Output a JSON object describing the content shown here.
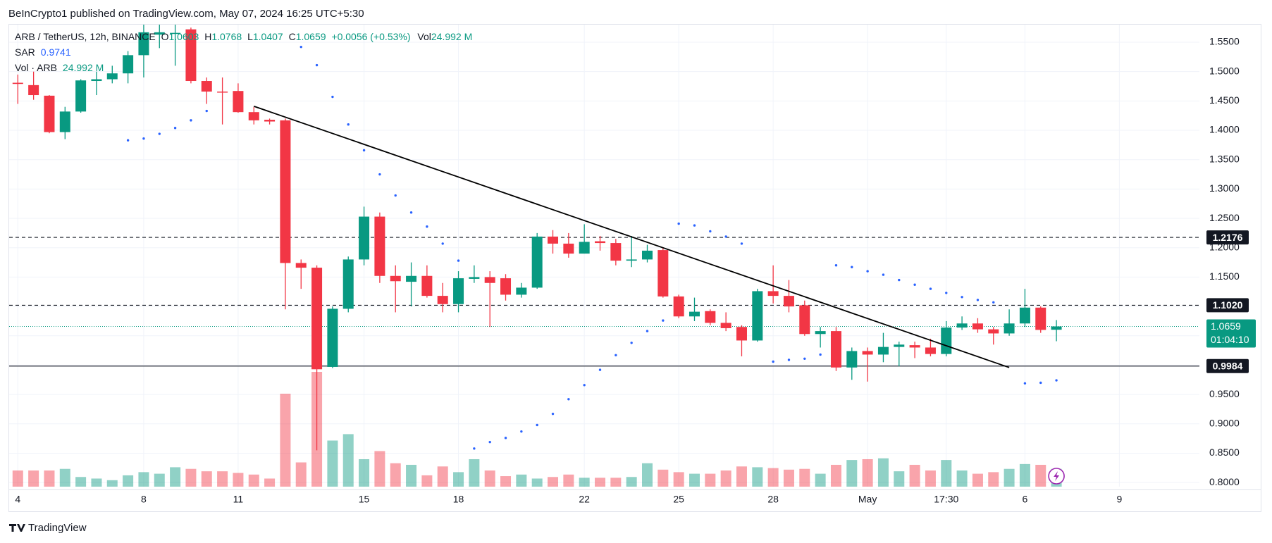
{
  "header": "BeInCrypto1 published on TradingView.com, May 07, 2024 16:25 UTC+5:30",
  "legend": {
    "symbol": "ARB / TetherUS, 12h, BINANCE",
    "ohlc": [
      {
        "key": "O",
        "text": "1.0603"
      },
      {
        "key": "H",
        "text": "1.0768"
      },
      {
        "key": "L",
        "text": "1.0407"
      },
      {
        "key": "C",
        "text": "1.0659"
      }
    ],
    "change": "+0.0056 (+0.53%)",
    "volume_key": "Vol",
    "volume_text": "24.992 M"
  },
  "indicators": [
    {
      "name": "SAR",
      "text": "0.9741"
    },
    {
      "name": "Vol · ARB",
      "text": "24.992 M"
    }
  ],
  "footer": "TradingView",
  "chart_data": {
    "type": "candlestick",
    "categories": [
      "2024-04-04 05:30",
      "2024-04-04 17:30",
      "2024-04-05 05:30",
      "2024-04-05 17:30",
      "2024-04-06 05:30",
      "2024-04-06 17:30",
      "2024-04-07 05:30",
      "2024-04-07 17:30",
      "2024-04-08 05:30",
      "2024-04-08 17:30",
      "2024-04-09 05:30",
      "2024-04-09 17:30",
      "2024-04-10 05:30",
      "2024-04-10 17:30",
      "2024-04-11 05:30",
      "2024-04-11 17:30",
      "2024-04-12 05:30",
      "2024-04-12 17:30",
      "2024-04-13 05:30",
      "2024-04-13 17:30",
      "2024-04-14 05:30",
      "2024-04-14 17:30",
      "2024-04-15 05:30",
      "2024-04-15 17:30",
      "2024-04-16 05:30",
      "2024-04-16 17:30",
      "2024-04-17 05:30",
      "2024-04-17 17:30",
      "2024-04-18 05:30",
      "2024-04-18 17:30",
      "2024-04-19 05:30",
      "2024-04-19 17:30",
      "2024-04-20 05:30",
      "2024-04-20 17:30",
      "2024-04-21 05:30",
      "2024-04-21 17:30",
      "2024-04-22 05:30",
      "2024-04-22 17:30",
      "2024-04-23 05:30",
      "2024-04-23 17:30",
      "2024-04-24 05:30",
      "2024-04-24 17:30",
      "2024-04-25 05:30",
      "2024-04-25 17:30",
      "2024-04-26 05:30",
      "2024-04-26 17:30",
      "2024-04-27 05:30",
      "2024-04-27 17:30",
      "2024-04-28 05:30",
      "2024-04-28 17:30",
      "2024-04-29 05:30",
      "2024-04-29 17:30",
      "2024-04-30 05:30",
      "2024-04-30 17:30",
      "2024-05-01 05:30",
      "2024-05-01 17:30",
      "2024-05-02 05:30",
      "2024-05-02 17:30",
      "2024-05-03 05:30",
      "2024-05-03 17:30",
      "2024-05-04 05:30",
      "2024-05-04 17:30",
      "2024-05-05 05:30",
      "2024-05-05 17:30",
      "2024-05-06 05:30",
      "2024-05-06 17:30",
      "2024-05-07 05:30"
    ],
    "open": [
      1.481,
      1.477,
      1.459,
      1.397,
      1.432,
      1.484,
      1.487,
      1.497,
      1.528,
      1.563,
      1.566,
      1.572,
      1.484,
      1.466,
      1.467,
      1.431,
      1.418,
      1.417,
      1.174,
      1.166,
      0.997,
      1.096,
      1.18,
      1.253,
      1.152,
      1.142,
      1.152,
      1.118,
      1.104,
      1.147,
      1.15,
      1.148,
      1.12,
      1.132,
      1.219,
      1.207,
      1.19,
      1.211,
      1.208,
      1.178,
      1.18,
      1.196,
      1.117,
      1.083,
      1.092,
      1.072,
      1.065,
      1.042,
      1.126,
      1.118,
      1.102,
      1.053,
      1.058,
      0.996,
      1.024,
      1.018,
      1.031,
      1.034,
      1.03,
      1.019,
      1.064,
      1.071,
      1.061,
      1.054,
      1.071,
      1.098,
      1.0603
    ],
    "high": [
      1.495,
      1.5,
      1.46,
      1.44,
      1.487,
      1.5,
      1.51,
      1.535,
      1.58,
      1.58,
      1.58,
      1.575,
      1.49,
      1.49,
      1.48,
      1.44,
      1.42,
      1.42,
      1.18,
      1.17,
      1.1,
      1.185,
      1.27,
      1.26,
      1.17,
      1.175,
      1.17,
      1.14,
      1.16,
      1.17,
      1.16,
      1.155,
      1.14,
      1.225,
      1.23,
      1.225,
      1.24,
      1.22,
      1.215,
      1.22,
      1.205,
      1.2,
      1.12,
      1.115,
      1.095,
      1.09,
      1.068,
      1.13,
      1.17,
      1.145,
      1.11,
      1.065,
      1.065,
      1.03,
      1.03,
      1.055,
      1.04,
      1.04,
      1.045,
      1.075,
      1.083,
      1.08,
      1.065,
      1.095,
      1.13,
      1.1,
      1.0768
    ],
    "low": [
      1.445,
      1.452,
      1.395,
      1.385,
      1.43,
      1.46,
      1.48,
      1.48,
      1.49,
      1.54,
      1.51,
      1.48,
      1.445,
      1.41,
      1.43,
      1.41,
      1.41,
      1.095,
      1.13,
      0.855,
      0.995,
      1.09,
      1.17,
      1.14,
      1.09,
      1.1,
      1.115,
      1.09,
      1.09,
      1.14,
      1.065,
      1.11,
      1.115,
      1.13,
      1.19,
      1.183,
      1.19,
      1.195,
      1.17,
      1.167,
      1.175,
      1.115,
      1.08,
      1.075,
      1.068,
      1.058,
      1.015,
      1.04,
      1.105,
      1.09,
      1.05,
      1.03,
      0.99,
      0.975,
      0.972,
      1.005,
      0.998,
      1.012,
      1.015,
      1.015,
      1.06,
      1.055,
      1.035,
      1.05,
      1.065,
      1.055,
      1.0407
    ],
    "close": [
      1.479,
      1.46,
      1.397,
      1.432,
      1.485,
      1.487,
      1.497,
      1.528,
      1.567,
      1.567,
      1.566,
      1.484,
      1.466,
      1.465,
      1.431,
      1.417,
      1.415,
      1.174,
      1.166,
      0.993,
      1.096,
      1.18,
      1.253,
      1.152,
      1.143,
      1.152,
      1.118,
      1.104,
      1.148,
      1.15,
      1.14,
      1.12,
      1.132,
      1.219,
      1.207,
      1.19,
      1.21,
      1.208,
      1.178,
      1.18,
      1.195,
      1.117,
      1.083,
      1.091,
      1.072,
      1.063,
      1.042,
      1.126,
      1.118,
      1.1,
      1.053,
      1.058,
      0.996,
      1.024,
      1.018,
      1.031,
      1.035,
      1.03,
      1.019,
      1.064,
      1.071,
      1.061,
      1.054,
      1.071,
      1.098,
      1.06,
      1.0659
    ],
    "volume": [
      22.7,
      22.7,
      22.7,
      25.0,
      13.6,
      11.4,
      9.1,
      15.9,
      20.4,
      18.2,
      27.3,
      25.0,
      21.6,
      21.6,
      19.3,
      17.0,
      11.4,
      130.6,
      34.1,
      161.3,
      64.8,
      73.8,
      38.6,
      50.0,
      32.9,
      30.7,
      15.9,
      28.4,
      20.4,
      38.6,
      22.7,
      14.8,
      17.0,
      11.4,
      13.6,
      17.0,
      12.5,
      12.5,
      12.5,
      13.6,
      32.9,
      23.9,
      20.4,
      18.2,
      18.2,
      22.7,
      28.4,
      27.3,
      26.1,
      23.9,
      25.0,
      18.2,
      30.7,
      37.5,
      38.6,
      39.8,
      21.6,
      30.7,
      22.7,
      37.5,
      22.7,
      18.2,
      20.4,
      25.0,
      31.8,
      30.7,
      24.992
    ],
    "sar": [
      null,
      null,
      null,
      null,
      null,
      null,
      null,
      1.383,
      1.386,
      1.394,
      1.404,
      1.417,
      1.433,
      null,
      null,
      null,
      null,
      null,
      1.542,
      1.511,
      1.457,
      1.41,
      1.366,
      1.325,
      1.289,
      1.26,
      1.236,
      1.207,
      1.178,
      0.858,
      0.869,
      0.876,
      0.887,
      0.898,
      0.917,
      0.942,
      0.966,
      0.992,
      1.017,
      1.038,
      1.058,
      1.076,
      1.241,
      1.238,
      1.228,
      1.219,
      1.207,
      null,
      1.006,
      1.009,
      1.011,
      1.018,
      1.17,
      1.167,
      1.16,
      1.154,
      1.145,
      1.137,
      1.13,
      1.123,
      1.116,
      1.111,
      1.107,
      null,
      0.969,
      0.97,
      0.9741
    ],
    "up_color": "#089981",
    "down_color": "#f23645",
    "sar_color": "#2962ff",
    "ylim": [
      0.793,
      1.58
    ],
    "yticks": [
      {
        "value": 0.8,
        "label": "0.8000"
      },
      {
        "value": 0.85,
        "label": "0.8500"
      },
      {
        "value": 0.9,
        "label": "0.9000"
      },
      {
        "value": 0.95,
        "label": "0.9500"
      },
      {
        "value": 1.0,
        "label": "1.0000"
      },
      {
        "value": 1.05,
        "label": "1.0500"
      },
      {
        "value": 1.1,
        "label": "1.1000"
      },
      {
        "value": 1.15,
        "label": "1.1500"
      },
      {
        "value": 1.2,
        "label": "1.2000"
      },
      {
        "value": 1.25,
        "label": "1.2500"
      },
      {
        "value": 1.3,
        "label": "1.3000"
      },
      {
        "value": 1.35,
        "label": "1.3500"
      },
      {
        "value": 1.4,
        "label": "1.4000"
      },
      {
        "value": 1.45,
        "label": "1.4500"
      },
      {
        "value": 1.5,
        "label": "1.5000"
      },
      {
        "value": 1.55,
        "label": "1.5500"
      }
    ],
    "xticks": [
      {
        "value": "2024-04-04 05:30",
        "label": "4"
      },
      {
        "value": "2024-04-08 05:30",
        "label": "8"
      },
      {
        "value": "2024-04-11 05:30",
        "label": "11"
      },
      {
        "value": "2024-04-15 05:30",
        "label": "15"
      },
      {
        "value": "2024-04-18 05:30",
        "label": "18"
      },
      {
        "value": "2024-04-22 05:30",
        "label": "22"
      },
      {
        "value": "2024-04-25 05:30",
        "label": "25"
      },
      {
        "value": "2024-04-28 05:30",
        "label": "28"
      },
      {
        "value": "2024-05-01 05:30",
        "label": "May"
      },
      {
        "value": "2024-05-03 17:30",
        "label": "17:30"
      },
      {
        "value": "2024-05-06 05:30",
        "label": "6"
      },
      {
        "value": "2024-05-09 05:30",
        "label": "9"
      }
    ],
    "grid": true,
    "levels": [
      {
        "value": 1.2176,
        "label": "1.2176",
        "style": "dashed"
      },
      {
        "value": 1.102,
        "label": "1.1020",
        "style": "dashed"
      },
      {
        "value": 0.9984,
        "label": "0.9984",
        "style": "solid"
      }
    ],
    "last_price": {
      "value": 1.0659,
      "label": "1.0659",
      "countdown": "01:04:10"
    },
    "trendline": {
      "start": {
        "x": "2024-04-11 17:30",
        "y": 1.441
      },
      "end": {
        "x": "2024-05-05 17:30",
        "y": 0.996
      }
    }
  }
}
